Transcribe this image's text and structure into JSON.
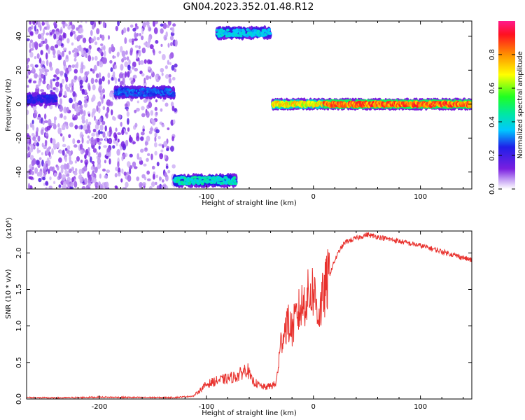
{
  "title": "GN04.2023.352.01.48.R12",
  "colors": {
    "snr_line": "#e8302c",
    "axis": "#000000",
    "spectrogram_points": "#7a1fe0"
  },
  "chart_data": [
    {
      "type": "heatmap",
      "name": "spectrogram",
      "xlabel": "Height of straight line (km)",
      "ylabel": "Frequency (Hz)",
      "xlim": [
        -268,
        148
      ],
      "ylim": [
        -50,
        49
      ],
      "xticks": [
        -200,
        -100,
        0,
        100
      ],
      "xtick_labels": [
        "-200",
        "-100",
        "0",
        "100"
      ],
      "yticks": [
        40,
        20,
        0,
        -20,
        -40
      ],
      "ytick_labels": [
        "40",
        "20",
        "0",
        "-20",
        "-40"
      ],
      "colorbar": {
        "label": "Normalized spectral amplitude",
        "range": [
          0,
          1
        ],
        "ticks": [
          0.0,
          0.2,
          0.4,
          0.6,
          0.8
        ],
        "tick_labels": [
          "0.0",
          "0.2",
          "0.4",
          "0.6",
          "0.8"
        ],
        "colormap": "rainbow"
      },
      "features": [
        {
          "x_range": [
            -268,
            -128
          ],
          "y_range": [
            -50,
            49
          ],
          "amplitude": 0.1,
          "kind": "scattered noise"
        },
        {
          "x_range": [
            -268,
            -240
          ],
          "y_center": 3,
          "amplitude": 0.25,
          "kind": "weak line"
        },
        {
          "x_range": [
            -185,
            -130
          ],
          "y_center": 7,
          "amplitude": 0.3,
          "kind": "line"
        },
        {
          "x_range": [
            -130,
            -72
          ],
          "y_center": -45,
          "amplitude": 0.45,
          "kind": "line"
        },
        {
          "x_range": [
            -90,
            -40
          ],
          "y_center": 42,
          "amplitude": 0.4,
          "kind": "line"
        },
        {
          "x_range": [
            -38,
            10
          ],
          "y_center": 0,
          "amplitude": 0.75,
          "kind": "line"
        },
        {
          "x_range": [
            10,
            148
          ],
          "y_center": 0,
          "amplitude": 0.9,
          "kind": "line"
        }
      ]
    },
    {
      "type": "line",
      "name": "snr",
      "xlabel": "Height of straight line (km)",
      "ylabel": "SNR (10 * v/v)",
      "y_multiplier": "(x10⁴)",
      "xlim": [
        -268,
        148
      ],
      "ylim": [
        0,
        23000
      ],
      "xticks": [
        -200,
        -100,
        0,
        100
      ],
      "xtick_labels": [
        "-200",
        "-100",
        "0",
        "100"
      ],
      "yticks": [
        0,
        5000,
        10000,
        15000,
        20000
      ],
      "ytick_labels": [
        "0.0",
        "0.5",
        "1.0",
        "1.5",
        "2.0"
      ],
      "series": [
        {
          "x": [
            -268,
            -240,
            -200,
            -160,
            -130,
            -112,
            -100,
            -90,
            -80,
            -70,
            -62,
            -58,
            -50,
            -45,
            -40,
            -35,
            -30,
            -25,
            -20,
            -15,
            -10,
            -5,
            0,
            5,
            10,
            15,
            20,
            25,
            30,
            40,
            50,
            60,
            80,
            100,
            120,
            148
          ],
          "y": [
            200,
            150,
            250,
            200,
            200,
            400,
            2000,
            2500,
            2800,
            3200,
            4200,
            2600,
            1800,
            1600,
            1800,
            2000,
            8000,
            10500,
            9500,
            11500,
            13000,
            14000,
            15000,
            11500,
            14500,
            17000,
            19000,
            20500,
            21500,
            22000,
            22500,
            22200,
            21600,
            21000,
            20200,
            19000
          ]
        }
      ]
    }
  ]
}
